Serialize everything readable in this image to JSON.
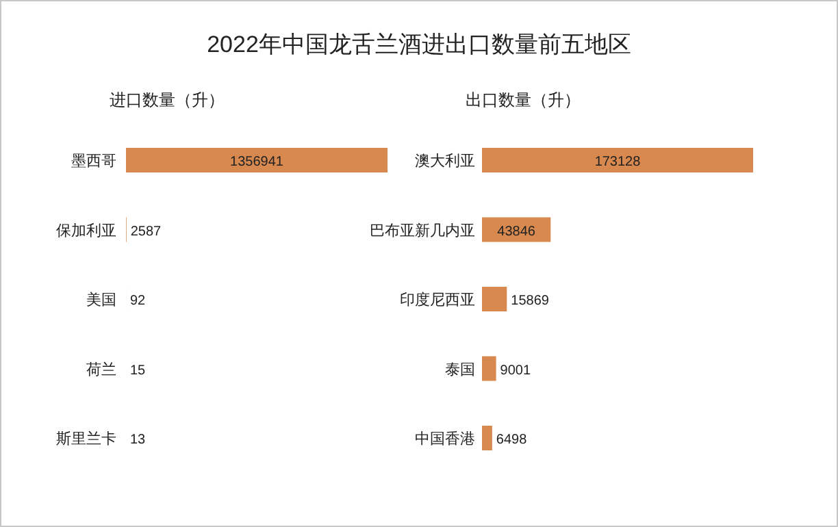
{
  "chart_data": [
    {
      "type": "bar",
      "orientation": "horizontal",
      "title": "2022年中国龙舌兰酒进出口数量前五地区",
      "subtitle": "进口数量（升）",
      "categories": [
        "墨西哥",
        "保加利亚",
        "美国",
        "荷兰",
        "斯里兰卡"
      ],
      "values": [
        1356941,
        2587,
        92,
        15,
        13
      ],
      "color": "#d8894f",
      "data_labels": true
    },
    {
      "type": "bar",
      "orientation": "horizontal",
      "subtitle": "出口数量（升）",
      "categories": [
        "澳大利亚",
        "巴布亚新几内亚",
        "印度尼西亚",
        "泰国",
        "中国香港"
      ],
      "values": [
        173128,
        43846,
        15869,
        9001,
        6498
      ],
      "color": "#d8894f",
      "data_labels": true
    }
  ]
}
